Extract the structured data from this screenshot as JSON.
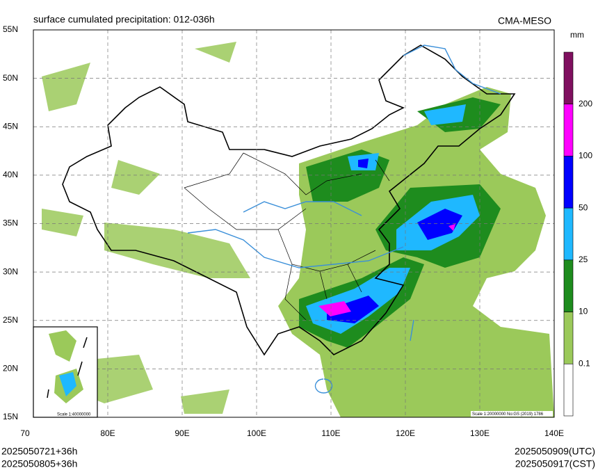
{
  "header": {
    "title": "surface cumulated precipitation: 012-036h",
    "model": "CMA-MESO"
  },
  "map": {
    "lat_labels": [
      "55N",
      "50N",
      "45N",
      "40N",
      "35N",
      "30N",
      "25N",
      "20N",
      "15N"
    ],
    "lon_labels": [
      "70",
      "80E",
      "90E",
      "100E",
      "110E",
      "120E",
      "130E",
      "140E"
    ],
    "scale_main": "Scale 1:20000000 No:GS (2019) 1786",
    "scale_inset": "Scale 1:40000000"
  },
  "legend": {
    "unit": "mm",
    "labels": [
      "200",
      "100",
      "50",
      "25",
      "10",
      "0.1"
    ],
    "colors": [
      "#7f0f5f",
      "#ff00ff",
      "#0000ff",
      "#1fb8ff",
      "#1e8c1e",
      "#9bc95a",
      "#ffffff"
    ]
  },
  "footer": {
    "init_utc": "2025050721+36h",
    "init_cst": "2025050805+36h",
    "valid_utc": "2025050909(UTC)",
    "valid_cst": "2025050917(CST)"
  }
}
